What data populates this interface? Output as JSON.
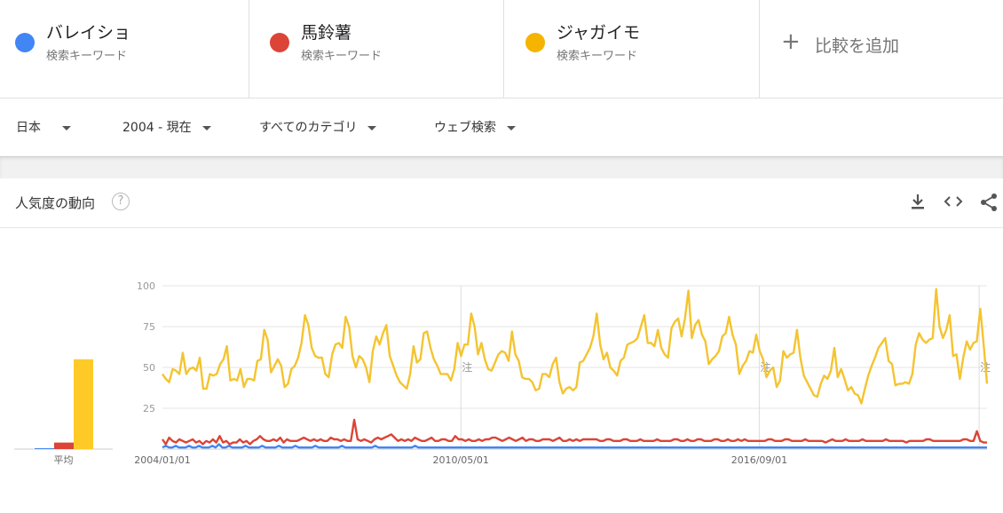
{
  "terms": [
    {
      "name": "バレイショ",
      "sub": "検索キーワード",
      "color": "#4285F4"
    },
    {
      "name": "馬鈴薯",
      "sub": "検索キーワード",
      "color": "#DB4437"
    },
    {
      "name": "ジャガイモ",
      "sub": "検索キーワード",
      "color": "#F4B400"
    }
  ],
  "add_compare": "比較を追加",
  "filters": {
    "region": "日本",
    "period": "2004 - 現在",
    "category": "すべてのカテゴリ",
    "search_type": "ウェブ検索"
  },
  "card": {
    "title": "人気度の動向",
    "help": "?"
  },
  "chart_data": {
    "type": "line",
    "y_ticks": [
      "100",
      "75",
      "50",
      "25"
    ],
    "ylim": [
      0,
      100
    ],
    "x_tick_labels": [
      "2004/01/01",
      "2010/05/01",
      "2016/09/01"
    ],
    "x_range": [
      "2004-01",
      "2021-07"
    ],
    "note_label": "注",
    "note_dates": [
      "2010-05",
      "2016-09",
      "2021-05"
    ],
    "average": {
      "label": "平均",
      "values": [
        0.5,
        4,
        55
      ]
    },
    "series": [
      {
        "name": "ジャガイモ",
        "color": "#F4C430",
        "values": [
          46,
          43,
          41,
          49,
          48,
          46,
          59,
          46,
          49,
          50,
          48,
          56,
          37,
          37,
          46,
          45,
          46,
          52,
          55,
          63,
          42,
          43,
          42,
          49,
          38,
          43,
          43,
          42,
          54,
          55,
          73,
          67,
          47,
          51,
          55,
          51,
          38,
          40,
          49,
          51,
          56,
          65,
          82,
          76,
          62,
          57,
          56,
          56,
          46,
          44,
          58,
          64,
          65,
          62,
          81,
          75,
          57,
          50,
          57,
          55,
          50,
          41,
          60,
          69,
          64,
          71,
          76,
          57,
          51,
          45,
          41,
          39,
          37,
          46,
          63,
          53,
          55,
          71,
          72,
          62,
          55,
          51,
          46,
          46,
          46,
          42,
          49,
          65,
          57,
          64,
          64,
          83,
          75,
          58,
          65,
          55,
          49,
          48,
          53,
          58,
          60,
          59,
          54,
          72,
          58,
          54,
          44,
          43,
          43,
          41,
          36,
          37,
          46,
          46,
          44,
          52,
          56,
          41,
          34,
          37,
          38,
          36,
          38,
          53,
          54,
          58,
          62,
          69,
          83,
          64,
          55,
          59,
          50,
          48,
          45,
          54,
          56,
          64,
          65,
          66,
          68,
          75,
          82,
          65,
          65,
          63,
          73,
          62,
          58,
          56,
          74,
          78,
          80,
          69,
          80,
          97,
          68,
          76,
          79,
          70,
          66,
          52,
          55,
          57,
          60,
          69,
          71,
          81,
          70,
          64,
          46,
          51,
          54,
          60,
          59,
          70,
          60,
          55,
          44,
          48,
          50,
          38,
          42,
          60,
          56,
          58,
          59,
          73,
          56,
          45,
          41,
          37,
          33,
          32,
          40,
          45,
          43,
          48,
          62,
          44,
          49,
          43,
          36,
          38,
          34,
          33,
          28,
          37,
          45,
          51,
          56,
          62,
          65,
          68,
          54,
          52,
          39,
          40,
          40,
          41,
          40,
          46,
          64,
          71,
          67,
          65,
          67,
          68,
          98,
          75,
          68,
          73,
          82,
          57,
          58,
          43,
          56,
          66,
          61,
          65,
          66,
          86,
          64,
          40
        ]
      },
      {
        "name": "馬鈴薯",
        "color": "#DB4437",
        "values": [
          6,
          3,
          7,
          5,
          4,
          6,
          5,
          4,
          5,
          6,
          4,
          5,
          3,
          5,
          4,
          6,
          4,
          8,
          4,
          5,
          3,
          4,
          4,
          6,
          4,
          5,
          3,
          5,
          6,
          8,
          6,
          5,
          5,
          6,
          5,
          7,
          4,
          6,
          5,
          5,
          5,
          6,
          7,
          6,
          5,
          6,
          5,
          6,
          5,
          5,
          7,
          6,
          6,
          5,
          6,
          5,
          5,
          18,
          6,
          5,
          6,
          5,
          4,
          6,
          7,
          6,
          7,
          8,
          9,
          7,
          5,
          6,
          5,
          6,
          5,
          7,
          6,
          5,
          5,
          6,
          7,
          5,
          5,
          6,
          6,
          5,
          5,
          8,
          6,
          6,
          5,
          6,
          5,
          5,
          6,
          5,
          6,
          6,
          7,
          7,
          6,
          5,
          6,
          7,
          6,
          5,
          6,
          7,
          5,
          6,
          6,
          5,
          5,
          6,
          6,
          6,
          5,
          6,
          7,
          5,
          5,
          6,
          5,
          6,
          5,
          6,
          6,
          6,
          6,
          6,
          5,
          5,
          6,
          6,
          5,
          5,
          5,
          6,
          6,
          5,
          5,
          5,
          6,
          5,
          5,
          5,
          5,
          6,
          5,
          5,
          5,
          5,
          6,
          6,
          5,
          5,
          6,
          5,
          5,
          6,
          6,
          5,
          5,
          5,
          6,
          6,
          5,
          5,
          6,
          5,
          5,
          6,
          5,
          6,
          5,
          5,
          5,
          5,
          5,
          5,
          6,
          6,
          5,
          5,
          5,
          6,
          6,
          5,
          5,
          5,
          5,
          6,
          5,
          5,
          5,
          5,
          5,
          4,
          5,
          6,
          5,
          5,
          5,
          6,
          5,
          5,
          5,
          5,
          6,
          5,
          5,
          5,
          5,
          5,
          5,
          6,
          5,
          5,
          5,
          5,
          5,
          4,
          5,
          5,
          5,
          5,
          5,
          6,
          6,
          5,
          5,
          5,
          5,
          5,
          5,
          5,
          5,
          5,
          6,
          6,
          5,
          5,
          11,
          5,
          4,
          4
        ]
      },
      {
        "name": "バレイショ",
        "color": "#4285F4",
        "values": [
          1,
          2,
          1,
          1,
          2,
          1,
          1,
          1,
          2,
          1,
          1,
          2,
          1,
          1,
          1,
          2,
          1,
          3,
          1,
          1,
          2,
          1,
          1,
          1,
          1,
          2,
          1,
          1,
          1,
          1,
          2,
          1,
          1,
          1,
          1,
          2,
          1,
          1,
          1,
          1,
          2,
          1,
          1,
          1,
          1,
          1,
          2,
          1,
          1,
          1,
          1,
          1,
          1,
          1,
          2,
          1,
          1,
          1,
          1,
          1,
          1,
          1,
          1,
          1,
          2,
          1,
          1,
          1,
          1,
          1,
          1,
          1,
          1,
          1,
          1,
          1,
          2,
          1,
          1,
          1,
          1,
          1,
          1,
          1,
          1,
          1,
          1,
          1,
          1,
          1,
          1,
          1,
          1,
          1,
          1,
          1,
          1,
          1,
          1,
          1,
          1,
          1,
          1,
          1,
          1,
          1,
          1,
          1,
          1,
          1,
          1,
          1,
          1,
          1,
          1,
          1,
          1,
          1,
          1,
          1,
          1,
          1,
          1,
          1,
          1,
          1,
          1,
          1,
          1,
          1,
          1,
          1,
          1,
          1,
          1,
          1,
          1,
          1,
          1,
          1,
          1,
          1,
          1,
          1,
          1,
          1,
          1,
          1,
          1,
          1,
          1,
          1,
          1,
          1,
          1,
          1,
          1,
          1,
          1,
          1,
          1,
          1,
          1,
          1,
          1,
          1,
          1,
          1,
          1,
          1,
          1,
          1,
          1,
          1,
          1,
          1,
          1,
          1,
          1,
          1,
          1,
          1,
          1,
          1,
          1,
          1,
          1,
          1,
          1,
          1,
          1,
          1,
          1,
          1,
          1,
          1,
          1,
          1,
          1,
          1,
          1,
          1,
          1,
          1,
          1,
          1,
          1,
          1,
          1,
          1,
          1,
          1,
          1,
          1,
          1,
          1,
          1,
          1,
          1,
          1,
          1,
          1,
          1,
          1,
          1,
          1,
          1,
          1,
          1,
          1,
          1,
          1,
          1,
          1,
          1,
          1,
          1,
          1,
          1,
          1,
          1,
          1,
          1,
          1,
          1,
          1,
          1,
          1,
          1
        ]
      }
    ]
  }
}
